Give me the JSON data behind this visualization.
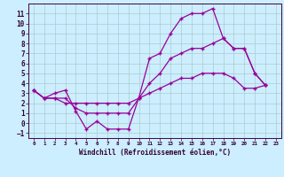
{
  "xlabel": "Windchill (Refroidissement éolien,°C)",
  "bg_color": "#cceeff",
  "grid_color": "#aacccc",
  "line_color": "#990099",
  "xlim": [
    -0.5,
    23.5
  ],
  "ylim": [
    -1.5,
    12.0
  ],
  "yticks": [
    -1,
    0,
    1,
    2,
    3,
    4,
    5,
    6,
    7,
    8,
    9,
    10,
    11
  ],
  "xticks": [
    0,
    1,
    2,
    3,
    4,
    5,
    6,
    7,
    8,
    9,
    10,
    11,
    12,
    13,
    14,
    15,
    16,
    17,
    18,
    19,
    20,
    21,
    22,
    23
  ],
  "series_max": [
    3.3,
    2.5,
    3.0,
    3.3,
    1.2,
    -0.6,
    0.2,
    -0.6,
    -0.6,
    -0.6,
    2.6,
    6.5,
    7.0,
    9.0,
    10.5,
    11.0,
    11.0,
    11.5,
    8.5,
    7.5,
    7.5,
    5.0,
    3.8
  ],
  "series_mean": [
    3.3,
    2.5,
    2.5,
    2.5,
    1.5,
    1.0,
    1.0,
    1.0,
    1.0,
    1.0,
    2.5,
    4.0,
    5.0,
    6.5,
    7.0,
    7.5,
    7.5,
    8.0,
    8.5,
    7.5,
    7.5,
    5.0,
    3.8
  ],
  "series_min": [
    3.3,
    2.5,
    2.5,
    2.0,
    2.0,
    2.0,
    2.0,
    2.0,
    2.0,
    2.0,
    2.5,
    3.0,
    3.5,
    4.0,
    4.5,
    4.5,
    5.0,
    5.0,
    5.0,
    4.5,
    3.5,
    3.5,
    3.8
  ]
}
